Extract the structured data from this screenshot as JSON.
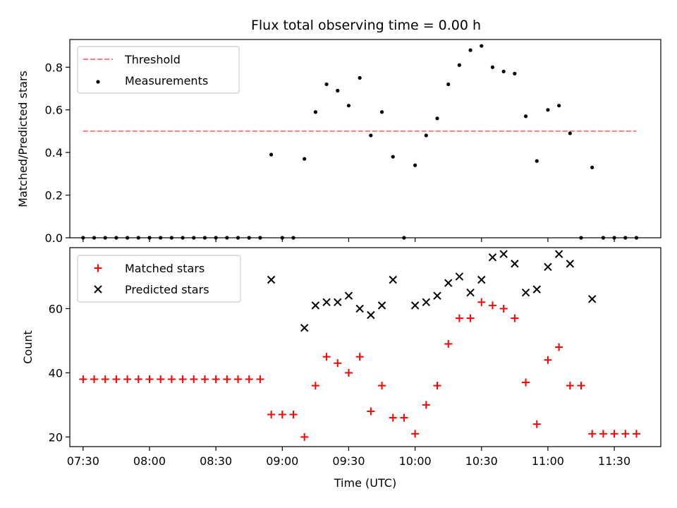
{
  "chart_data": [
    {
      "type": "scatter",
      "title": "Flux total observing time = 0.00 h",
      "xlabel": "",
      "ylabel": "Matched/Predicted stars",
      "ylim": [
        0,
        0.93
      ],
      "yticks": [
        "0.0",
        "0.2",
        "0.4",
        "0.6",
        "0.8"
      ],
      "ytick_values": [
        0.0,
        0.2,
        0.4,
        0.6,
        0.8
      ],
      "legend_position": "upper-left",
      "threshold": {
        "name": "Threshold",
        "value": 0.5,
        "x_start": "07:30",
        "x_end": "11:40",
        "color": "#ff7f7f"
      },
      "series": [
        {
          "name": "Measurements",
          "color": "#000000",
          "x": [
            "07:30",
            "07:35",
            "07:40",
            "07:45",
            "07:50",
            "07:55",
            "08:00",
            "08:05",
            "08:10",
            "08:15",
            "08:20",
            "08:25",
            "08:30",
            "08:35",
            "08:40",
            "08:45",
            "08:50",
            "08:55",
            "09:00",
            "09:05",
            "09:10",
            "09:15",
            "09:20",
            "09:25",
            "09:30",
            "09:35",
            "09:40",
            "09:45",
            "09:50",
            "09:55",
            "10:00",
            "10:05",
            "10:10",
            "10:15",
            "10:20",
            "10:25",
            "10:30",
            "10:35",
            "10:40",
            "10:45",
            "10:50",
            "10:55",
            "11:00",
            "11:05",
            "11:10",
            "11:15",
            "11:20",
            "11:25",
            "11:30",
            "11:35",
            "11:40"
          ],
          "y": [
            0,
            0,
            0,
            0,
            0,
            0,
            0,
            0,
            0,
            0,
            0,
            0,
            0,
            0,
            0,
            0,
            0,
            0.39,
            0,
            0,
            0.37,
            0.59,
            0.72,
            0.69,
            0.62,
            0.75,
            0.48,
            0.59,
            0.38,
            0,
            0.34,
            0.48,
            0.56,
            0.72,
            0.81,
            0.88,
            0.9,
            0.8,
            0.78,
            0.77,
            0.57,
            0.36,
            0.6,
            0.62,
            0.49,
            0,
            0.33,
            0,
            0,
            0,
            0
          ]
        }
      ]
    },
    {
      "type": "scatter",
      "title": "",
      "xlabel": "Time (UTC)",
      "ylabel": "Count",
      "ylim": [
        17,
        79
      ],
      "yticks": [
        "20",
        "40",
        "60"
      ],
      "ytick_values": [
        20,
        40,
        60
      ],
      "xlim": [
        "07:24",
        "11:51"
      ],
      "xticks": [
        "07:30",
        "08:00",
        "08:30",
        "09:00",
        "09:30",
        "10:00",
        "10:30",
        "11:00",
        "11:30"
      ],
      "legend_position": "upper-left",
      "series": [
        {
          "name": "Matched stars",
          "color": "#ff0000",
          "marker": "plus",
          "x": [
            "07:30",
            "07:35",
            "07:40",
            "07:45",
            "07:50",
            "07:55",
            "08:00",
            "08:05",
            "08:10",
            "08:15",
            "08:20",
            "08:25",
            "08:30",
            "08:35",
            "08:40",
            "08:45",
            "08:50",
            "08:55",
            "09:00",
            "09:05",
            "09:10",
            "09:15",
            "09:20",
            "09:25",
            "09:30",
            "09:35",
            "09:40",
            "09:45",
            "09:50",
            "09:55",
            "10:00",
            "10:05",
            "10:10",
            "10:15",
            "10:20",
            "10:25",
            "10:30",
            "10:35",
            "10:40",
            "10:45",
            "10:50",
            "10:55",
            "11:00",
            "11:05",
            "11:10",
            "11:15",
            "11:20",
            "11:25",
            "11:30",
            "11:35",
            "11:40"
          ],
          "y": [
            38,
            38,
            38,
            38,
            38,
            38,
            38,
            38,
            38,
            38,
            38,
            38,
            38,
            38,
            38,
            38,
            38,
            27,
            27,
            27,
            20,
            36,
            45,
            43,
            40,
            45,
            28,
            36,
            26,
            26,
            21,
            30,
            36,
            49,
            57,
            57,
            62,
            61,
            60,
            57,
            37,
            24,
            44,
            48,
            36,
            36,
            21,
            21,
            21,
            21,
            21
          ]
        },
        {
          "name": "Predicted stars",
          "color": "#000000",
          "marker": "x",
          "x": [
            "08:55",
            "09:10",
            "09:15",
            "09:20",
            "09:25",
            "09:30",
            "09:35",
            "09:40",
            "09:45",
            "09:50",
            "10:00",
            "10:05",
            "10:10",
            "10:15",
            "10:20",
            "10:25",
            "10:30",
            "10:35",
            "10:40",
            "10:45",
            "10:50",
            "10:55",
            "11:00",
            "11:05",
            "11:10",
            "11:20"
          ],
          "y": [
            69,
            54,
            61,
            62,
            62,
            64,
            60,
            58,
            61,
            69,
            61,
            62,
            64,
            68,
            70,
            65,
            69,
            76,
            77,
            74,
            65,
            66,
            73,
            77,
            74,
            63
          ]
        }
      ]
    }
  ]
}
